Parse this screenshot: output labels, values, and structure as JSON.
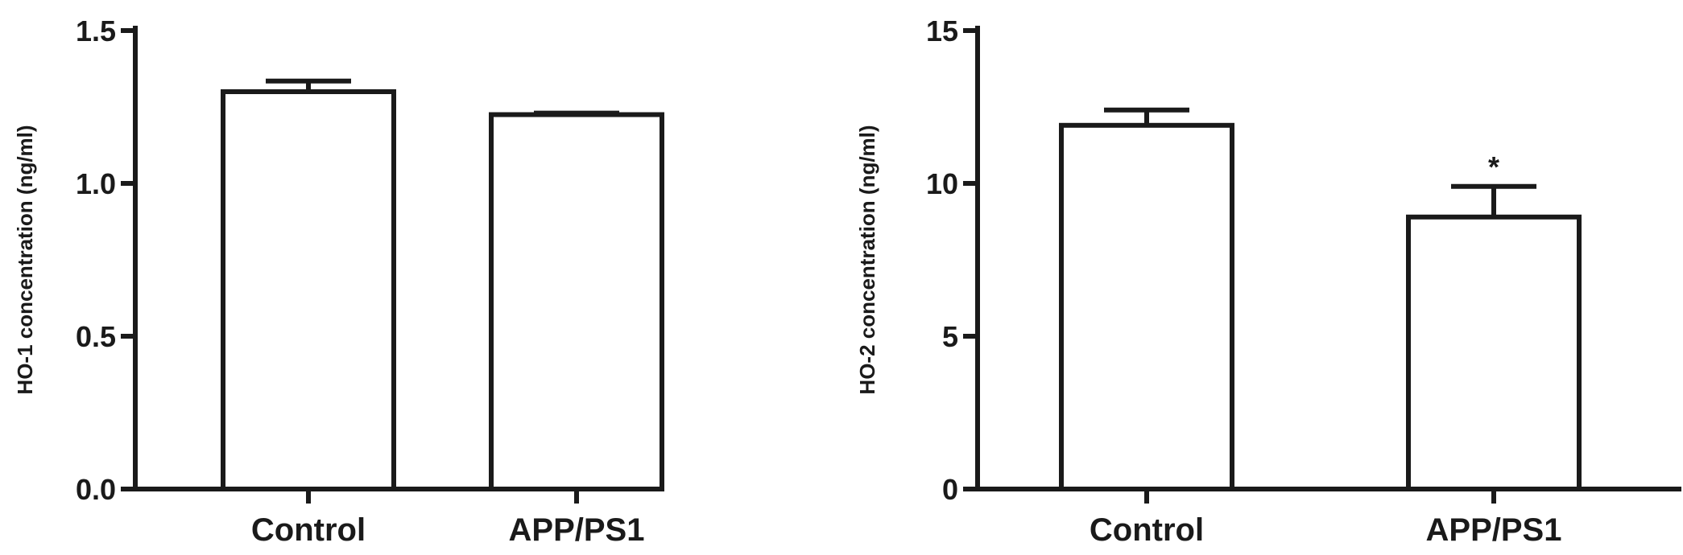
{
  "chart_data": [
    {
      "type": "bar",
      "title": "",
      "xlabel": "",
      "ylabel": "HO-1 concentration (ng/ml)",
      "ylim": [
        0,
        1.5
      ],
      "yticks": [
        0.0,
        0.5,
        1.0,
        1.5
      ],
      "ytick_labels": [
        "0.0",
        "0.5",
        "1.0",
        "1.5"
      ],
      "categories": [
        "Control",
        "APP/PS1"
      ],
      "values": [
        1.3,
        1.225
      ],
      "errors": [
        0.035,
        0.005
      ],
      "annotations": [
        "",
        ""
      ],
      "grid": false,
      "legend": "none"
    },
    {
      "type": "bar",
      "title": "",
      "xlabel": "",
      "ylabel": "HO-2 concentration (ng/ml)",
      "ylim": [
        0,
        15
      ],
      "yticks": [
        0,
        5,
        10,
        15
      ],
      "ytick_labels": [
        "0",
        "5",
        "10",
        "15"
      ],
      "categories": [
        "Control",
        "APP/PS1"
      ],
      "values": [
        11.9,
        8.9
      ],
      "errors": [
        0.5,
        1.0
      ],
      "annotations": [
        "",
        "*"
      ],
      "grid": false,
      "legend": "none"
    }
  ]
}
